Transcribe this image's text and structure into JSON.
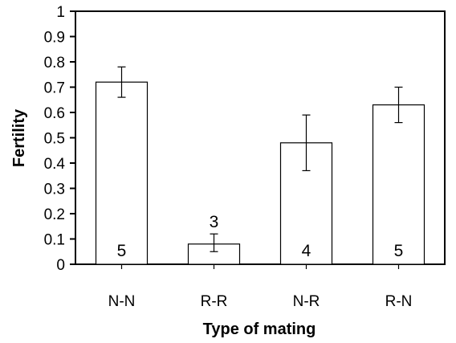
{
  "chart_data": {
    "type": "bar",
    "title": "",
    "xlabel": "Type of mating",
    "ylabel": "Fertility",
    "ylim": [
      0,
      1
    ],
    "yticks": [
      0,
      0.1,
      0.2,
      0.3,
      0.4,
      0.5,
      0.6,
      0.7,
      0.8,
      0.9,
      1
    ],
    "ytick_labels": [
      "0",
      "0.1",
      "0.2",
      "0.3",
      "0.4",
      "0.5",
      "0.6",
      "0.7",
      "0.8",
      "0.9",
      "1"
    ],
    "categories": [
      "N-N",
      "R-R",
      "N-R",
      "R-N"
    ],
    "values": [
      0.72,
      0.08,
      0.48,
      0.63
    ],
    "error_low": [
      0.66,
      0.05,
      0.37,
      0.56
    ],
    "error_high": [
      0.78,
      0.12,
      0.59,
      0.7
    ],
    "n_labels": [
      "5",
      "3",
      "4",
      "5"
    ],
    "grid": false,
    "bar_color": "#ffffff",
    "edge_color": "#000000"
  }
}
